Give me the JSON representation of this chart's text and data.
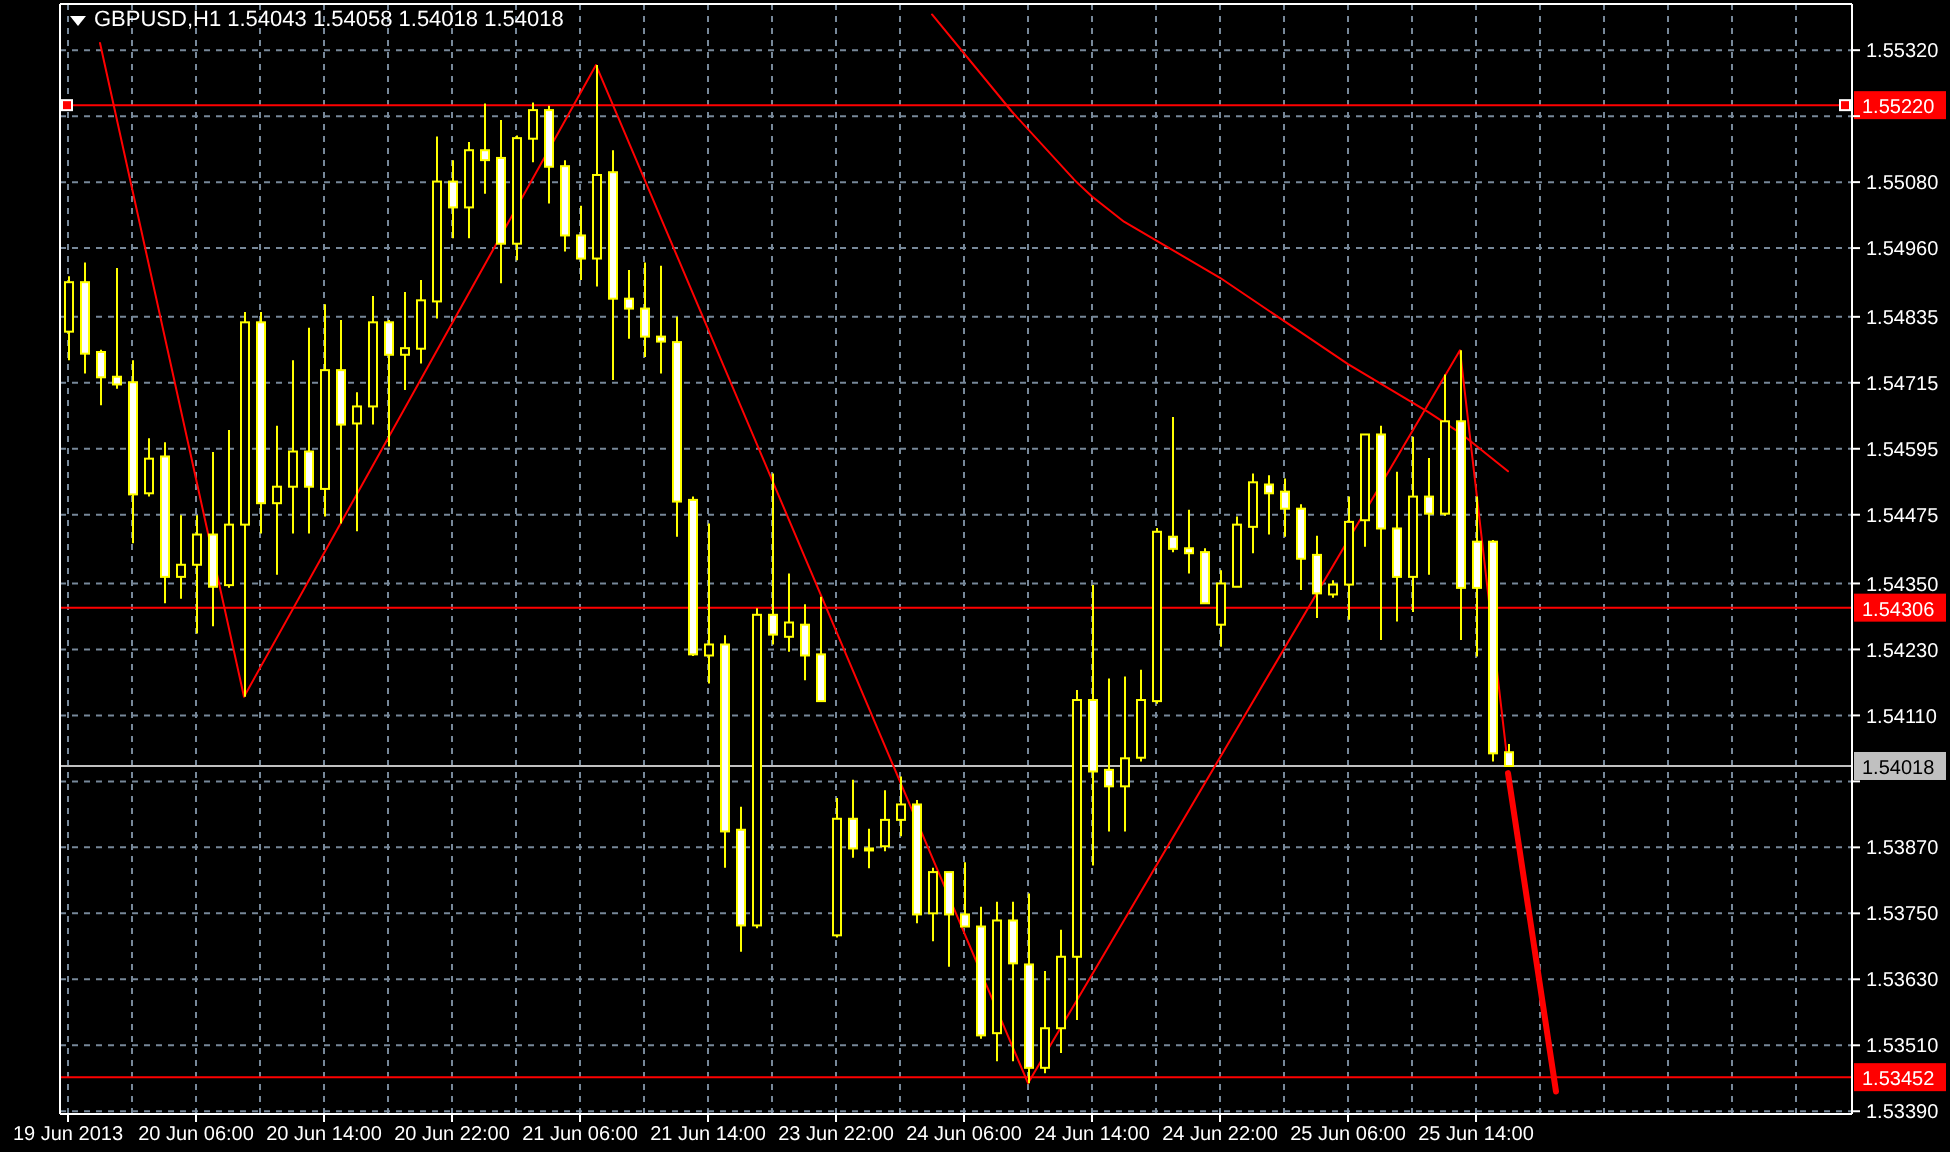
{
  "chart_data": {
    "type": "candlestick",
    "title": "GBPUSD,H1 1.54043 1.54058 1.54018 1.54018",
    "color": "#ffff00",
    "grid": true,
    "categories": [
      "19 Jun 2013",
      null,
      null,
      null,
      null,
      null,
      null,
      null,
      "20 Jun 06:00",
      null,
      null,
      null,
      null,
      null,
      null,
      null,
      "20 Jun 14:00",
      null,
      null,
      null,
      null,
      null,
      null,
      null,
      "20 Jun 22:00",
      null,
      null,
      null,
      null,
      null,
      null,
      null,
      "21 Jun 06:00",
      null,
      null,
      null,
      null,
      null,
      null,
      null,
      "21 Jun 14:00",
      null,
      null,
      null,
      null,
      null,
      null,
      null,
      "23 Jun 22:00",
      null,
      null,
      null,
      null,
      null,
      null,
      null,
      "24 Jun 06:00",
      null,
      null,
      null,
      null,
      null,
      null,
      null,
      "24 Jun 14:00",
      null,
      null,
      null,
      null,
      null,
      null,
      null,
      "24 Jun 22:00",
      null,
      null,
      null,
      null,
      null,
      null,
      null,
      "25 Jun 06:00",
      null,
      null,
      null,
      null,
      null,
      null,
      null,
      "25 Jun 14:00",
      null,
      null,
      null,
      null,
      null,
      null,
      null,
      null,
      null,
      null,
      null,
      null,
      null,
      null,
      null,
      null,
      null,
      null,
      null,
      null,
      null,
      null,
      null
    ],
    "ohlc": [
      [
        1.54808,
        1.54909,
        1.54756,
        1.54898
      ],
      [
        1.54898,
        1.54934,
        1.54732,
        1.54768
      ],
      [
        1.54771,
        1.54775,
        1.54674,
        1.54725
      ],
      [
        1.54726,
        1.54924,
        1.54704,
        1.54712
      ],
      [
        1.54716,
        1.54756,
        1.54423,
        1.54512
      ],
      [
        1.54514,
        1.54614,
        1.54508,
        1.54577
      ],
      [
        1.54581,
        1.54607,
        1.54314,
        1.54362
      ],
      [
        1.54362,
        1.54474,
        1.54322,
        1.54384
      ],
      [
        1.54384,
        1.54474,
        1.54259,
        1.54439
      ],
      [
        1.54439,
        1.54589,
        1.54272,
        1.54344
      ],
      [
        1.54347,
        1.54629,
        1.54342,
        1.54457
      ],
      [
        1.54457,
        1.54844,
        1.54144,
        1.54825
      ],
      [
        1.54825,
        1.54844,
        1.54441,
        1.54496
      ],
      [
        1.54496,
        1.54637,
        1.54366,
        1.54526
      ],
      [
        1.54526,
        1.54756,
        1.54441,
        1.5459
      ],
      [
        1.5459,
        1.54815,
        1.54441,
        1.54526
      ],
      [
        1.54522,
        1.54858,
        1.54472,
        1.54738
      ],
      [
        1.54738,
        1.54829,
        1.54459,
        1.54639
      ],
      [
        1.54641,
        1.54698,
        1.54445,
        1.54672
      ],
      [
        1.54672,
        1.54873,
        1.54639,
        1.54825
      ],
      [
        1.54825,
        1.54829,
        1.54599,
        1.54766
      ],
      [
        1.54766,
        1.5488,
        1.54702,
        1.54778
      ],
      [
        1.54777,
        1.54902,
        1.5475,
        1.54865
      ],
      [
        1.54863,
        1.55163,
        1.54832,
        1.55081
      ],
      [
        1.55081,
        1.5512,
        1.54978,
        1.55034
      ],
      [
        1.55034,
        1.55153,
        1.54978,
        1.55138
      ],
      [
        1.55138,
        1.55223,
        1.55059,
        1.5512
      ],
      [
        1.55124,
        1.55193,
        1.54896,
        1.54968
      ],
      [
        1.54968,
        1.55165,
        1.54938,
        1.5516
      ],
      [
        1.55159,
        1.55225,
        1.55116,
        1.55211
      ],
      [
        1.55211,
        1.55219,
        1.55041,
        1.55108
      ],
      [
        1.55109,
        1.5512,
        1.54954,
        1.54983
      ],
      [
        1.54983,
        1.55037,
        1.54902,
        1.54941
      ],
      [
        1.54941,
        1.55293,
        1.5489,
        1.55093
      ],
      [
        1.55098,
        1.55138,
        1.5472,
        1.54868
      ],
      [
        1.54868,
        1.5492,
        1.54795,
        1.5485
      ],
      [
        1.5485,
        1.54934,
        1.54762,
        1.54799
      ],
      [
        1.54799,
        1.54928,
        1.54732,
        1.5479
      ],
      [
        1.54789,
        1.54835,
        1.54435,
        1.54499
      ],
      [
        1.54502,
        1.54508,
        1.54218,
        1.54221
      ],
      [
        1.54219,
        1.54459,
        1.54168,
        1.54239
      ],
      [
        1.54239,
        1.54256,
        1.53833,
        1.53899
      ],
      [
        1.53902,
        1.53944,
        1.5368,
        1.53728
      ],
      [
        1.53728,
        1.54305,
        1.53723,
        1.54293
      ],
      [
        1.54293,
        1.5455,
        1.54239,
        1.54257
      ],
      [
        1.54253,
        1.54368,
        1.54226,
        1.54279
      ],
      [
        1.54275,
        1.54312,
        1.54174,
        1.54219
      ],
      [
        1.54221,
        1.54326,
        1.54136,
        1.54136
      ],
      [
        1.5371,
        1.5396,
        1.53706,
        1.53922
      ],
      [
        1.53922,
        1.53993,
        1.53851,
        1.53868
      ],
      [
        1.53868,
        1.53904,
        1.53832,
        1.53866
      ],
      [
        1.53872,
        1.53974,
        1.53863,
        1.5392
      ],
      [
        1.5392,
        1.53999,
        1.5389,
        1.53948
      ],
      [
        1.53948,
        1.53956,
        1.53732,
        1.53748
      ],
      [
        1.5375,
        1.53833,
        1.53699,
        1.53825
      ],
      [
        1.53825,
        1.53825,
        1.53653,
        1.53748
      ],
      [
        1.53748,
        1.53843,
        1.53726,
        1.53726
      ],
      [
        1.53726,
        1.53762,
        1.53522,
        1.53528
      ],
      [
        1.53532,
        1.53771,
        1.53481,
        1.53737
      ],
      [
        1.53737,
        1.53771,
        1.53481,
        1.53659
      ],
      [
        1.53657,
        1.53786,
        1.53441,
        1.53469
      ],
      [
        1.53469,
        1.53645,
        1.53459,
        1.53541
      ],
      [
        1.53541,
        1.5372,
        1.53496,
        1.53671
      ],
      [
        1.53671,
        1.54156,
        1.53556,
        1.54138
      ],
      [
        1.54138,
        1.54347,
        1.53837,
        1.54008
      ],
      [
        1.54011,
        1.54177,
        1.53899,
        1.53981
      ],
      [
        1.53981,
        1.54181,
        1.53899,
        1.54032
      ],
      [
        1.54033,
        1.54193,
        1.54026,
        1.54138
      ],
      [
        1.54136,
        1.54451,
        1.54131,
        1.54444
      ],
      [
        1.54435,
        1.54653,
        1.54407,
        1.54413
      ],
      [
        1.54414,
        1.54484,
        1.54368,
        1.54405
      ],
      [
        1.54407,
        1.54414,
        1.54314,
        1.54314
      ],
      [
        1.54275,
        1.54374,
        1.54235,
        1.5435
      ],
      [
        1.54344,
        1.54472,
        1.54344,
        1.54457
      ],
      [
        1.54453,
        1.5455,
        1.54405,
        1.54534
      ],
      [
        1.5453,
        1.54547,
        1.54439,
        1.54514
      ],
      [
        1.54517,
        1.54541,
        1.54435,
        1.54486
      ],
      [
        1.54486,
        1.54494,
        1.54338,
        1.54395
      ],
      [
        1.54402,
        1.54437,
        1.54287,
        1.54332
      ],
      [
        1.5433,
        1.54356,
        1.54324,
        1.54348
      ],
      [
        1.54348,
        1.54508,
        1.54284,
        1.54462
      ],
      [
        1.54465,
        1.54621,
        1.54417,
        1.54621
      ],
      [
        1.54621,
        1.54637,
        1.54247,
        1.5445
      ],
      [
        1.5445,
        1.54553,
        1.54281,
        1.54362
      ],
      [
        1.54362,
        1.54617,
        1.54298,
        1.54508
      ],
      [
        1.54508,
        1.54578,
        1.54366,
        1.54477
      ],
      [
        1.54477,
        1.5473,
        1.54473,
        1.54645
      ],
      [
        1.54645,
        1.54774,
        1.54247,
        1.54342
      ],
      [
        1.54426,
        1.54508,
        1.54217,
        1.54342
      ],
      [
        1.54426,
        1.54429,
        1.54026,
        1.54041
      ],
      [
        1.54043,
        1.54058,
        1.54018,
        1.54018
      ],
      null,
      null,
      null,
      null,
      null,
      null,
      null,
      null,
      null,
      null,
      null,
      null,
      null,
      null,
      null,
      null,
      null,
      null,
      null,
      null,
      null
    ],
    "series": [
      {
        "type": "line",
        "color": "#ff0000",
        "values": [
          null,
          null,
          1.55333,
          null,
          null,
          null,
          null,
          null,
          null,
          null,
          null,
          1.54144,
          null,
          null,
          null,
          null,
          null,
          null,
          null,
          null,
          null,
          null,
          null,
          null,
          null,
          null,
          null,
          null,
          null,
          null,
          null,
          null,
          null,
          1.55293,
          null,
          null,
          null,
          null,
          null,
          null,
          null,
          null,
          null,
          null,
          null,
          null,
          null,
          null,
          null,
          null,
          null,
          null,
          null,
          null,
          null,
          null,
          null,
          null,
          null,
          null,
          1.53441,
          null,
          null,
          null,
          null,
          null,
          null,
          null,
          null,
          null,
          null,
          null,
          null,
          null,
          null,
          null,
          null,
          null,
          null,
          null,
          null,
          null,
          null,
          null,
          null,
          null,
          null,
          1.54774,
          null,
          null,
          1.54018,
          null,
          null,
          null,
          null,
          null,
          null,
          null,
          null,
          null,
          null,
          null,
          null,
          null,
          null,
          null,
          null,
          null,
          null,
          null,
          null,
          null
        ]
      },
      {
        "type": "line",
        "color": "#ff0000",
        "values": [
          null,
          null,
          null,
          null,
          null,
          null,
          null,
          null,
          null,
          null,
          null,
          null,
          null,
          null,
          null,
          null,
          null,
          null,
          null,
          null,
          null,
          null,
          null,
          null,
          null,
          null,
          null,
          null,
          null,
          null,
          null,
          null,
          null,
          null,
          null,
          null,
          null,
          null,
          null,
          null,
          null,
          null,
          null,
          null,
          null,
          null,
          null,
          null,
          null,
          null,
          null,
          null,
          null,
          null,
          1.55385,
          null,
          null,
          null,
          null,
          1.55208,
          null,
          null,
          null,
          1.55081,
          1.55054,
          null,
          1.55008,
          null,
          null,
          null,
          null,
          null,
          1.54906,
          null,
          null,
          null,
          null,
          null,
          null,
          null,
          1.54749,
          null,
          null,
          null,
          null,
          1.54662,
          null,
          1.54624,
          null,
          null,
          1.54554,
          null,
          null,
          null,
          null,
          null,
          null,
          null,
          null,
          null,
          null,
          null,
          null,
          null,
          null,
          null,
          null,
          null,
          null,
          null,
          null,
          null
        ]
      },
      {
        "type": "line",
        "color": "#ff0000",
        "values": [
          null,
          null,
          null,
          null,
          null,
          null,
          null,
          null,
          null,
          null,
          null,
          null,
          null,
          null,
          null,
          null,
          null,
          null,
          null,
          null,
          null,
          null,
          null,
          null,
          null,
          null,
          null,
          null,
          null,
          null,
          null,
          null,
          null,
          null,
          null,
          null,
          null,
          null,
          null,
          null,
          null,
          null,
          null,
          null,
          null,
          null,
          null,
          null,
          null,
          null,
          null,
          null,
          null,
          null,
          null,
          null,
          null,
          null,
          null,
          null,
          null,
          null,
          null,
          null,
          null,
          null,
          null,
          null,
          null,
          null,
          null,
          null,
          null,
          null,
          null,
          null,
          null,
          null,
          null,
          null,
          null,
          null,
          null,
          null,
          null,
          null,
          null,
          null,
          null,
          null,
          1.54005,
          null,
          null,
          1.53426,
          null,
          null,
          null,
          null,
          null,
          null,
          null,
          null,
          null,
          null,
          null,
          null,
          null,
          null,
          null,
          null,
          null,
          null
        ]
      }
    ],
    "ylim": [
      1.53385,
      1.55404
    ],
    "yticks": [
      {
        "value": 1.5339,
        "label": "1.53390"
      },
      {
        "value": 1.5351,
        "label": "1.53510"
      },
      {
        "value": 1.5363,
        "label": "1.53630"
      },
      {
        "value": 1.5375,
        "label": "1.53750"
      },
      {
        "value": 1.5387,
        "label": "1.53870"
      },
      {
        "value": 1.5399,
        "label": null
      },
      {
        "value": 1.5411,
        "label": "1.54110"
      },
      {
        "value": 1.5423,
        "label": "1.54230"
      },
      {
        "value": 1.5435,
        "label": "1.54350"
      },
      {
        "value": 1.54475,
        "label": "1.54475"
      },
      {
        "value": 1.54595,
        "label": "1.54595"
      },
      {
        "value": 1.54715,
        "label": "1.54715"
      },
      {
        "value": 1.54835,
        "label": "1.54835"
      },
      {
        "value": 1.5496,
        "label": "1.54960"
      },
      {
        "value": 1.5508,
        "label": "1.55080"
      },
      {
        "value": 1.552,
        "label": null
      },
      {
        "value": 1.5532,
        "label": "1.55320"
      }
    ],
    "ref_lines": [
      {
        "axis": "y",
        "value": 1.5522,
        "label": "1.55220",
        "color": "#ff0000"
      },
      {
        "axis": "y",
        "value": 1.54306,
        "label": "1.54306",
        "color": "#ff0000"
      },
      {
        "axis": "y",
        "value": 1.54018,
        "label": "1.54018",
        "color": "#c0c0c0"
      },
      {
        "axis": "y",
        "value": 1.53452,
        "label": "1.53452",
        "color": "#ff0000"
      }
    ]
  }
}
